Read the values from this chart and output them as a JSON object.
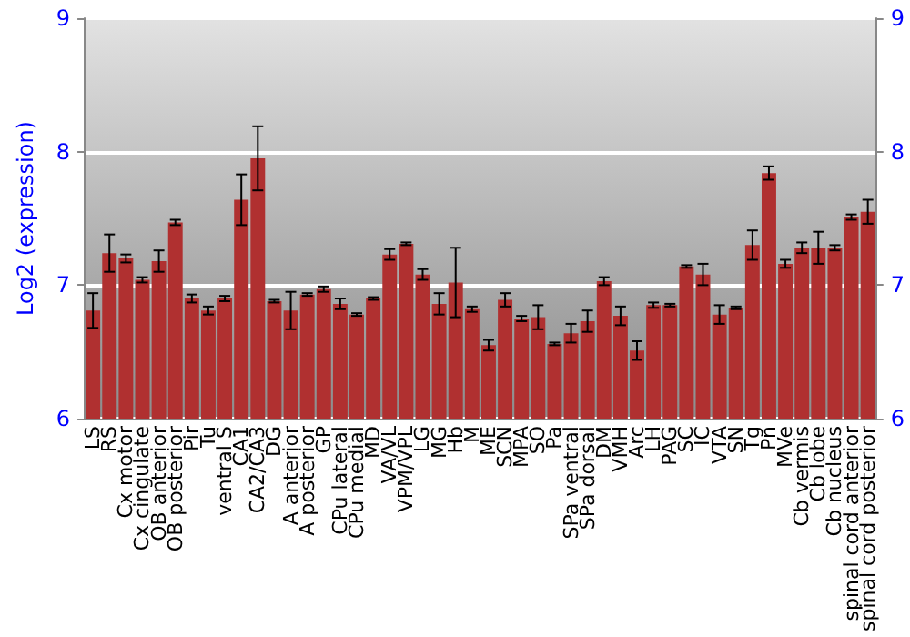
{
  "chart_data": {
    "type": "bar",
    "ylabel": "Log2 (expression)",
    "categories": [
      "LS",
      "RS",
      "Cx motor",
      "Cx cingulate",
      "OB anterior",
      "OB posterior",
      "Pir",
      "Tu",
      "ventral S",
      "CA1",
      "CA2/CA3",
      "DG",
      "A anterior",
      "A posterior",
      "GP",
      "CPu lateral",
      "CPu medial",
      "MD",
      "VA/VL",
      "VPM/VPL",
      "LG",
      "MG",
      "Hb",
      "M",
      "ME",
      "SCN",
      "MPA",
      "SO",
      "Pa",
      "SPa ventral",
      "SPa dorsal",
      "DM",
      "VMH",
      "Arc",
      "LH",
      "PAG",
      "SC",
      "IC",
      "VTA",
      "SN",
      "Tg",
      "Pn",
      "MVe",
      "Cb vermis",
      "Cb lobe",
      "Cb nucleus",
      "spinal cord anterior",
      "spinal cord posterior"
    ],
    "values": [
      6.81,
      7.24,
      7.2,
      7.04,
      7.18,
      7.47,
      6.9,
      6.81,
      6.9,
      7.64,
      7.95,
      6.88,
      6.81,
      6.93,
      6.97,
      6.86,
      6.78,
      6.9,
      7.23,
      7.31,
      7.08,
      6.86,
      7.02,
      6.82,
      6.55,
      6.89,
      6.75,
      6.76,
      6.56,
      6.64,
      6.73,
      7.03,
      6.77,
      6.51,
      6.85,
      6.85,
      7.14,
      7.08,
      6.78,
      6.83,
      7.3,
      7.84,
      7.16,
      7.28,
      7.28,
      7.28,
      7.51,
      7.55
    ],
    "errors": [
      0.13,
      0.14,
      0.03,
      0.02,
      0.08,
      0.02,
      0.03,
      0.03,
      0.02,
      0.19,
      0.24,
      0.01,
      0.14,
      0.01,
      0.02,
      0.04,
      0.01,
      0.01,
      0.04,
      0.01,
      0.04,
      0.08,
      0.26,
      0.02,
      0.04,
      0.05,
      0.02,
      0.09,
      0.01,
      0.07,
      0.08,
      0.03,
      0.07,
      0.07,
      0.02,
      0.01,
      0.01,
      0.08,
      0.07,
      0.01,
      0.11,
      0.05,
      0.03,
      0.04,
      0.12,
      0.02,
      0.02,
      0.09
    ],
    "color": "#b03030",
    "ylim": [
      6,
      9
    ],
    "yticks": [
      6,
      7,
      8,
      9
    ],
    "y2lim": [
      6,
      9
    ],
    "y2ticks": [
      6,
      7,
      8,
      9
    ],
    "grid": "y"
  }
}
